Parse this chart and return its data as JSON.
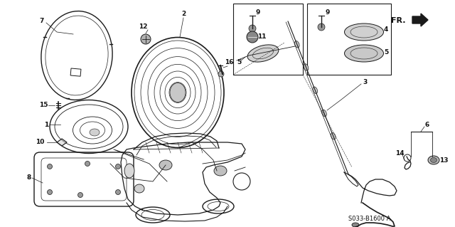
{
  "background_color": "#ffffff",
  "part_number": "S033-B1600 A",
  "fr_label": "FR.",
  "fig_width": 6.4,
  "fig_height": 3.19,
  "dpi": 100,
  "line_color": "#1a1a1a",
  "text_color": "#111111",
  "font_size_labels": 6.5,
  "font_size_partnumber": 6.0,
  "font_size_fr": 8
}
